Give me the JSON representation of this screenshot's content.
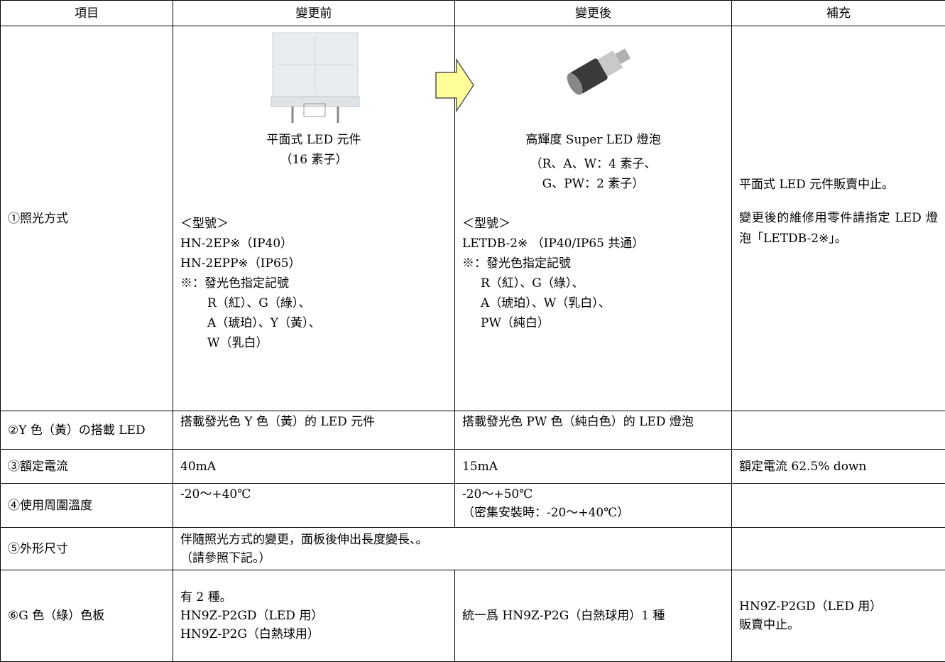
{
  "header": [
    "項目",
    "變更前",
    "變更後",
    "補充"
  ],
  "rows": [
    {
      "label": "①照光方式",
      "before": {
        "caption": [
          "平面式 LED 元件",
          "（16 素子）"
        ],
        "model_heading": "＜型號＞",
        "models": [
          "HN-2EP※（IP40）",
          "HN-2EPP※（IP65）"
        ],
        "color_note": "※：發光色指定記號",
        "colors": [
          "R（紅）、G（綠）、",
          "A（琥珀）、Y（黃）、",
          "W（乳白）"
        ]
      },
      "after": {
        "caption": [
          "高輝度 Super LED 燈泡",
          "（R、A、W：4 素子、",
          "G、PW：2 素子）"
        ],
        "model_heading": "＜型號＞",
        "models": [
          "LETDB-2※ （IP40/IP65 共通）"
        ],
        "color_note": "※：發光色指定記號",
        "colors": [
          "R（紅）、G（綠）、",
          "A（琥珀）、W（乳白）、",
          "PW（純白）"
        ]
      },
      "note": [
        "平面式 LED 元件販賣中止。",
        "變更後的維修用零件請指定 LED 燈泡「LETDB-2※」。"
      ]
    },
    {
      "label": "②Y 色（黃）の搭載 LED",
      "before": "搭載發光色 Y 色（黃）的 LED 元件",
      "after": "搭載發光色 PW 色（純白色）的 LED 燈泡"
    },
    {
      "label": "③額定電流",
      "before": "40mA",
      "after": "15mA",
      "note": "額定電流 62.5% down"
    },
    {
      "label": "④使用周圍溫度",
      "before": "-20～+40℃",
      "after": [
        "-20～+50℃",
        "（密集安裝時：-20～+40℃）"
      ]
    },
    {
      "label": "⑤外形尺寸",
      "merged": [
        "伴隨照光方式的變更，面板後伸出長度變長、。",
        "（請參照下記。）"
      ]
    },
    {
      "label": "⑥G 色（綠）色板",
      "before": [
        "有 2 種。",
        "HN9Z-P2GD（LED 用）",
        "HN9Z-P2G（白熱球用）"
      ],
      "after": "統一爲 HN9Z-P2G（白熱球用）1 種",
      "note": [
        "HN9Z-P2GD（LED 用）",
        "販賣中止。"
      ]
    }
  ]
}
